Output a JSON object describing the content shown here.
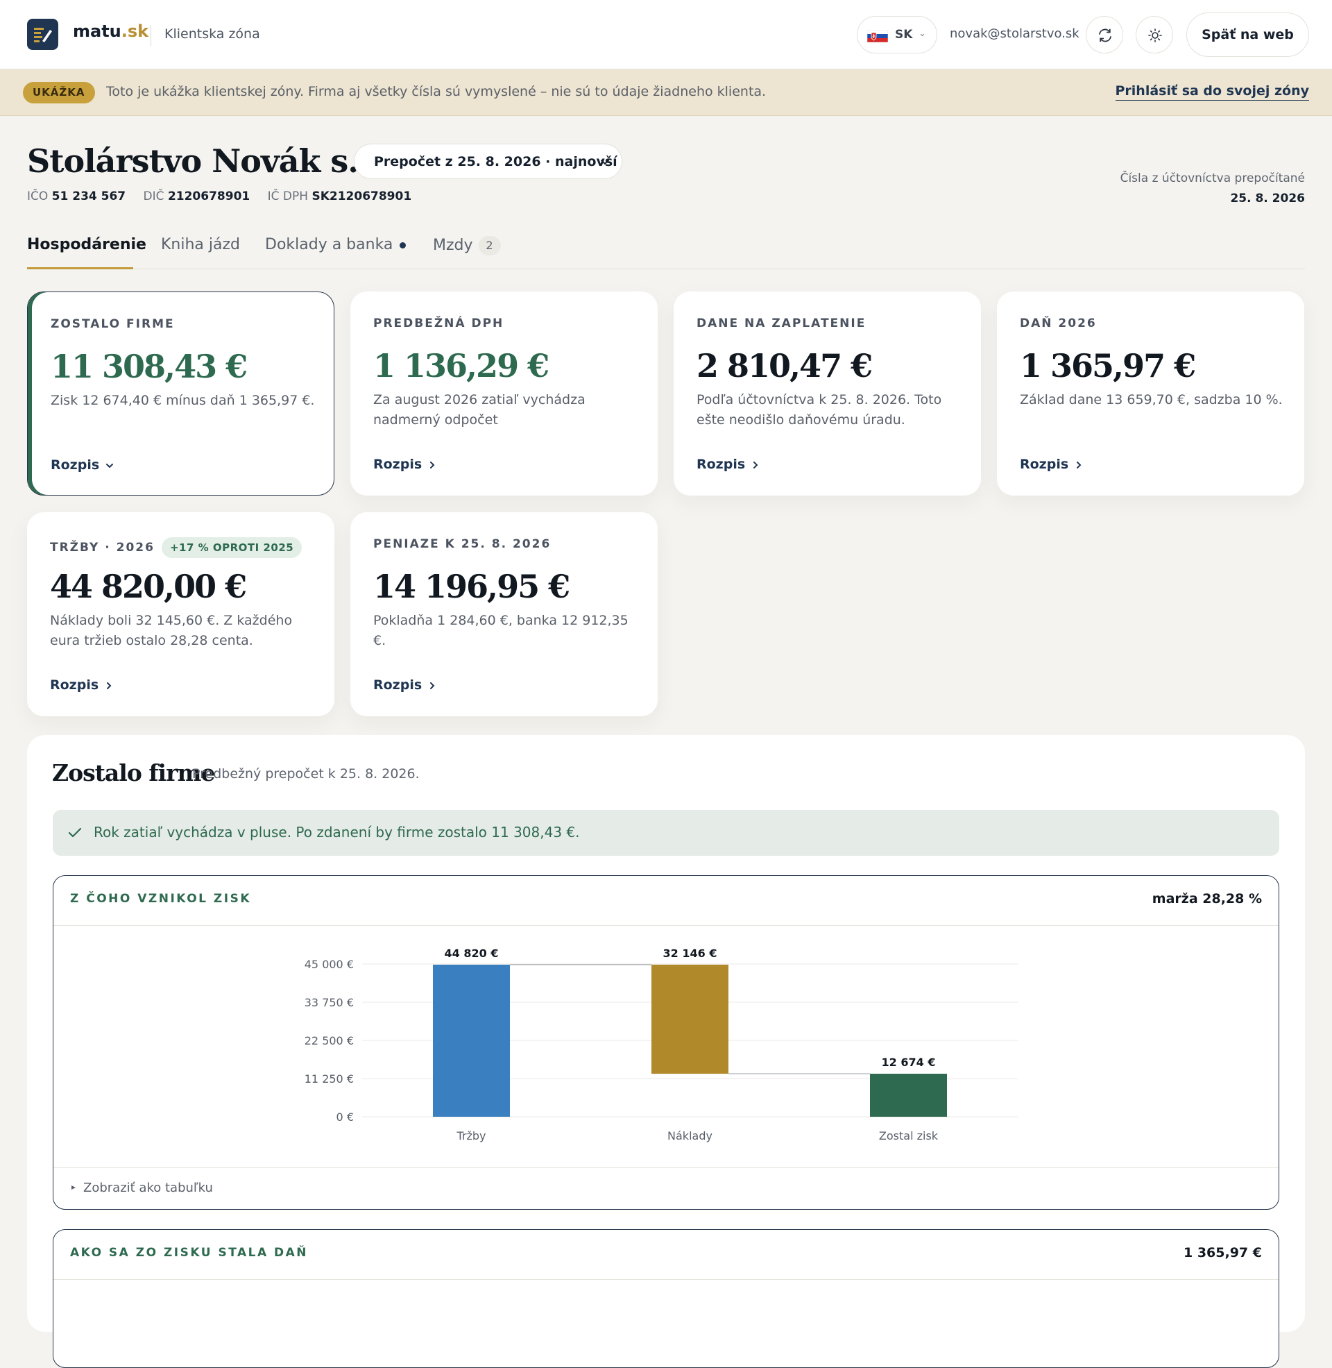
{
  "header": {
    "brand_main": "matu",
    "brand_tld": ".sk",
    "zone": "Klientska zóna",
    "lang_code": "SK",
    "email": "novak@stolarstvo.sk",
    "back_label": "Späť na web"
  },
  "banner": {
    "pill": "UKÁŽKA",
    "message": "Toto je ukážka klientskej zóny. Firma aj všetky čísla sú vymyslené – nie sú to údaje žiadneho klienta.",
    "login_link": "Prihlásiť sa do svojej zóny"
  },
  "company": {
    "name": "Stolárstvo Novák s. r. o.",
    "recalc": "Prepočet z 25. 8. 2026 · najnovší",
    "ico_label": "IČO",
    "ico": "51 234 567",
    "dic_label": "DIČ",
    "dic": "2120678901",
    "icdph_label": "IČ DPH",
    "icdph": "SK2120678901",
    "recount_line1": "Čísla z účtovníctva prepočítané",
    "recount_date": "25. 8. 2026"
  },
  "tabs": [
    {
      "label": "Hospodárenie"
    },
    {
      "label": "Kniha jázd"
    },
    {
      "label": "Doklady a banka"
    },
    {
      "label": "Mzdy",
      "badge": "2"
    }
  ],
  "cards": [
    {
      "label": "ZOSTALO FIRME",
      "value": "11 308,43 €",
      "desc": "Zisk 12 674,40 € mínus daň 1 365,97 €.",
      "link": "Rozpis"
    },
    {
      "label": "PREDBEŽNÁ DPH",
      "value": "1 136,29 €",
      "desc": "Za august 2026 zatiaľ vychádza nadmerný odpočet",
      "link": "Rozpis"
    },
    {
      "label": "DANE NA ZAPLATENIE",
      "value": "2 810,47 €",
      "desc": "Podľa účtovníctva k 25. 8. 2026. Toto ešte neodišlo daňovému úradu.",
      "link": "Rozpis"
    },
    {
      "label": "DAŇ 2026",
      "value": "1 365,97 €",
      "desc": "Základ dane 13 659,70 €, sadzba 10 %.",
      "link": "Rozpis"
    },
    {
      "label": "TRŽBY · 2026",
      "yoy": "+17 % OPROTI 2025",
      "value": "44 820,00 €",
      "desc": "Náklady boli 32 145,60 €. Z každého eura tržieb ostalo 28,28 centa.",
      "link": "Rozpis"
    },
    {
      "label": "PENIAZE K 25. 8. 2026",
      "value": "14 196,95 €",
      "desc": "Pokladňa 1 284,60 €, banka 12 912,35 €.",
      "link": "Rozpis"
    }
  ],
  "panel": {
    "title": "Zostalo firme",
    "subtitle": "Predbežný prepočet k 25. 8. 2026.",
    "ok_message": "Rok zatiaľ vychádza v pluse. Po zdanení by firme zostalo 11 308,43 €.",
    "profit_card": {
      "title": "Z ČOHO VZNIKOL ZISK",
      "right": "marža 28,28 %",
      "footer": "Zobraziť ako tabuľku"
    },
    "tax_card": {
      "title": "AKO SA ZO ZISKU STALA DAŇ",
      "right": "1 365,97 €"
    }
  },
  "chart_data": {
    "type": "bar",
    "subtype": "waterfall",
    "categories": [
      "Tržby",
      "Náklady",
      "Zostal zisk"
    ],
    "values": [
      44820,
      32146,
      12674
    ],
    "data_labels": [
      "44 820 €",
      "32 146 €",
      "12 674 €"
    ],
    "y_ticks": [
      "0 €",
      "11 250 €",
      "22 500 €",
      "33 750 €",
      "45 000 €"
    ],
    "ylim": [
      0,
      45000
    ],
    "grid": true,
    "colors": [
      "#3a7fbf",
      "#b0892b",
      "#2e6a4f"
    ]
  },
  "colors": {
    "brand_navy": "#1f3552",
    "accent_gold": "#c49a3a",
    "green": "#2e6a4f",
    "banner_bg": "#ede5d2"
  }
}
